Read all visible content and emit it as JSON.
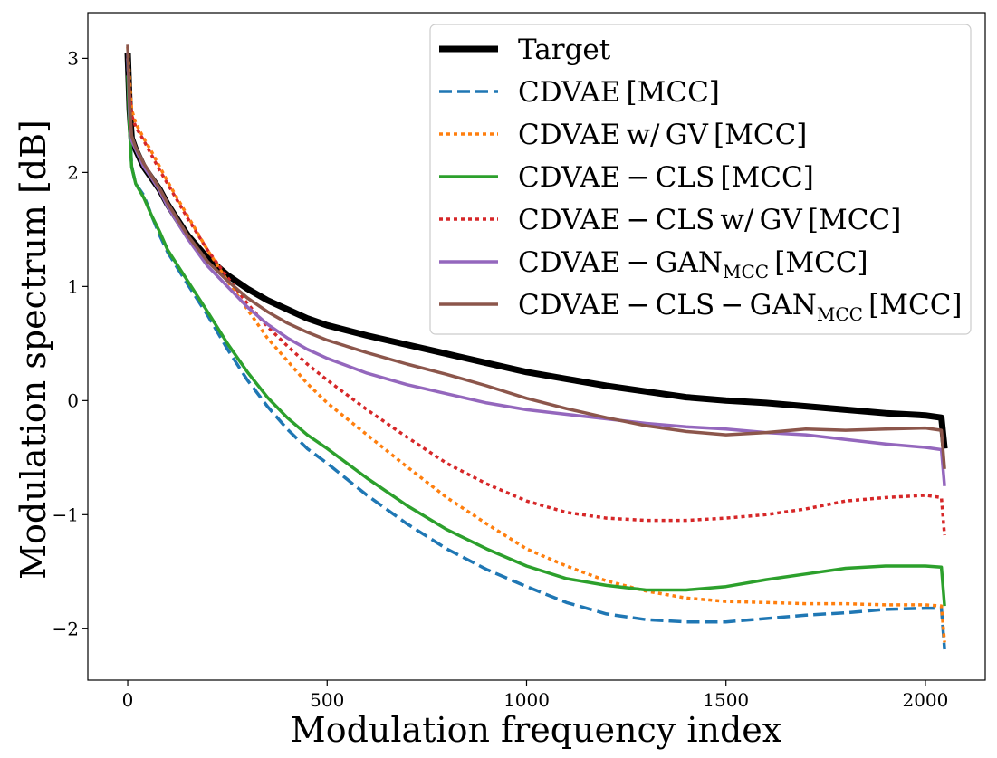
{
  "chart_data": {
    "type": "line",
    "xlabel": "Modulation frequency index",
    "ylabel": "Modulation spectrum [dB]",
    "xlim": [
      -100,
      2150
    ],
    "ylim": [
      -2.45,
      3.4
    ],
    "xticks": [
      0,
      500,
      1000,
      1500,
      2000
    ],
    "xtick_labels": [
      "0",
      "500",
      "1000",
      "1500",
      "2000"
    ],
    "yticks": [
      3,
      2,
      1,
      0,
      -1,
      -2
    ],
    "ytick_labels": [
      "3",
      "2",
      "1",
      "0",
      "−1",
      "−2"
    ],
    "legend_position": "top-right",
    "x": [
      0,
      5,
      10,
      20,
      40,
      60,
      80,
      100,
      150,
      200,
      250,
      300,
      350,
      400,
      450,
      500,
      600,
      700,
      800,
      900,
      1000,
      1100,
      1200,
      1300,
      1400,
      1500,
      1600,
      1700,
      1800,
      1900,
      2000,
      2040,
      2048
    ],
    "series": [
      {
        "name": "Target",
        "legend_label": "Target",
        "color": "#000000",
        "style": "solid",
        "width": 7,
        "values": [
          3.05,
          2.55,
          2.3,
          2.2,
          2.05,
          1.95,
          1.85,
          1.72,
          1.45,
          1.25,
          1.1,
          0.98,
          0.88,
          0.8,
          0.72,
          0.66,
          0.57,
          0.49,
          0.41,
          0.33,
          0.25,
          0.19,
          0.13,
          0.08,
          0.03,
          0.0,
          -0.02,
          -0.05,
          -0.08,
          -0.11,
          -0.13,
          -0.15,
          -0.42
        ]
      },
      {
        "name": "CDVAE [MCC]",
        "legend_main": "CDVAE [MCC]",
        "legend_sub": "",
        "legend_tail": "",
        "color": "#1f77b4",
        "style": "dashed",
        "width": 3.5,
        "values": [
          3.0,
          2.4,
          2.05,
          1.9,
          1.8,
          1.62,
          1.45,
          1.3,
          1.02,
          0.75,
          0.45,
          0.18,
          -0.05,
          -0.25,
          -0.42,
          -0.55,
          -0.83,
          -1.08,
          -1.3,
          -1.48,
          -1.63,
          -1.77,
          -1.87,
          -1.92,
          -1.94,
          -1.94,
          -1.91,
          -1.88,
          -1.86,
          -1.83,
          -1.82,
          -1.82,
          -2.18
        ]
      },
      {
        "name": "CDVAE w/ GV [MCC]",
        "legend_main": "CDVAE w/ GV [MCC]",
        "legend_sub": "",
        "legend_tail": "",
        "color": "#ff7f0e",
        "style": "dotted",
        "width": 3.5,
        "values": [
          3.1,
          2.8,
          2.55,
          2.43,
          2.3,
          2.18,
          2.05,
          1.92,
          1.62,
          1.32,
          1.05,
          0.8,
          0.55,
          0.35,
          0.15,
          -0.02,
          -0.3,
          -0.58,
          -0.85,
          -1.08,
          -1.3,
          -1.45,
          -1.58,
          -1.67,
          -1.73,
          -1.76,
          -1.77,
          -1.78,
          -1.78,
          -1.79,
          -1.79,
          -1.8,
          -2.12
        ]
      },
      {
        "name": "CDVAE-CLS [MCC]",
        "legend_main": "CDVAE − CLS [MCC]",
        "legend_sub": "",
        "legend_tail": "",
        "color": "#2ca02c",
        "style": "solid",
        "width": 3.5,
        "values": [
          2.85,
          2.35,
          2.05,
          1.9,
          1.78,
          1.62,
          1.48,
          1.32,
          1.05,
          0.78,
          0.5,
          0.25,
          0.03,
          -0.15,
          -0.3,
          -0.42,
          -0.68,
          -0.92,
          -1.13,
          -1.3,
          -1.45,
          -1.56,
          -1.62,
          -1.66,
          -1.66,
          -1.63,
          -1.57,
          -1.52,
          -1.47,
          -1.45,
          -1.45,
          -1.46,
          -1.8
        ]
      },
      {
        "name": "CDVAE-CLS w/ GV [MCC]",
        "legend_main": "CDVAE − CLS w/ GV [MCC]",
        "legend_sub": "",
        "legend_tail": "",
        "color": "#d62728",
        "style": "dotted",
        "width": 3.5,
        "values": [
          3.0,
          2.7,
          2.5,
          2.4,
          2.28,
          2.15,
          2.02,
          1.9,
          1.6,
          1.32,
          1.08,
          0.85,
          0.65,
          0.48,
          0.32,
          0.18,
          -0.08,
          -0.32,
          -0.55,
          -0.73,
          -0.88,
          -0.98,
          -1.03,
          -1.05,
          -1.05,
          -1.03,
          -1.0,
          -0.95,
          -0.88,
          -0.85,
          -0.83,
          -0.85,
          -1.18
        ]
      },
      {
        "name": "CDVAE-GAN_MCC [MCC]",
        "legend_main": "CDVAE − GAN",
        "legend_sub": "MCC",
        "legend_tail": " [MCC]",
        "color": "#9467bd",
        "style": "solid",
        "width": 3.5,
        "values": [
          3.05,
          2.5,
          2.28,
          2.2,
          2.05,
          1.95,
          1.84,
          1.7,
          1.42,
          1.18,
          1.0,
          0.82,
          0.67,
          0.55,
          0.45,
          0.37,
          0.24,
          0.14,
          0.06,
          -0.02,
          -0.08,
          -0.12,
          -0.16,
          -0.2,
          -0.23,
          -0.25,
          -0.28,
          -0.3,
          -0.34,
          -0.38,
          -0.41,
          -0.43,
          -0.75
        ]
      },
      {
        "name": "CDVAE-CLS-GAN_MCC [MCC]",
        "legend_main": "CDVAE − CLS − GAN",
        "legend_sub": "MCC",
        "legend_tail": " [MCC]",
        "color": "#8c564b",
        "style": "solid",
        "width": 3.5,
        "values": [
          3.12,
          2.6,
          2.32,
          2.22,
          2.08,
          1.97,
          1.86,
          1.73,
          1.45,
          1.22,
          1.05,
          0.9,
          0.78,
          0.68,
          0.6,
          0.53,
          0.42,
          0.32,
          0.23,
          0.13,
          0.02,
          -0.07,
          -0.15,
          -0.22,
          -0.27,
          -0.3,
          -0.28,
          -0.25,
          -0.26,
          -0.25,
          -0.24,
          -0.26,
          -0.6
        ]
      }
    ]
  }
}
